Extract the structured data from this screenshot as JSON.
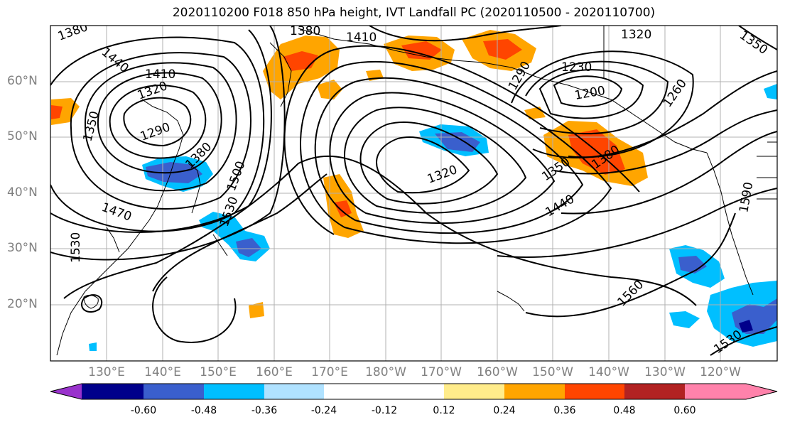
{
  "title": "2020110200 F018 850 hPa height, IVT Landfall PC (2020110500 - 2020110700)",
  "lat_labels": [
    "60°N",
    "50°N",
    "40°N",
    "30°N",
    "20°N"
  ],
  "lon_labels": [
    "130°E",
    "140°E",
    "150°E",
    "160°E",
    "170°E",
    "180°W",
    "170°W",
    "160°W",
    "150°W",
    "140°W",
    "130°W",
    "120°W"
  ],
  "colorbar": {
    "colors": [
      "#9932cc",
      "#00008b",
      "#3a5fcd",
      "#00bfff",
      "#b0e2ff",
      "#ffffff",
      "#ffffff",
      "#ffec8b",
      "#ffa500",
      "#ff4500",
      "#b22222",
      "#ff82ab"
    ],
    "ticks": [
      "-0.60",
      "-0.48",
      "-0.36",
      "-0.24",
      "-0.12",
      "0.12",
      "0.24",
      "0.36",
      "0.48",
      "0.60"
    ]
  },
  "contour_labels": [
    "1380",
    "1380",
    "1410",
    "1320",
    "1350",
    "1440",
    "1410",
    "1320",
    "1290",
    "1350",
    "1380",
    "1500",
    "1470",
    "1530",
    "1530",
    "1290",
    "1230",
    "1200",
    "1260",
    "1320",
    "1350",
    "1380",
    "1440",
    "1590",
    "1560",
    "1530"
  ]
}
